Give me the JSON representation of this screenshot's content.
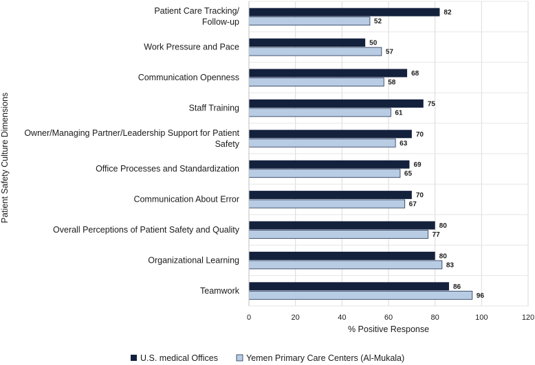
{
  "chart_data": {
    "type": "bar",
    "orientation": "horizontal",
    "title": "",
    "xlabel": "% Positive Response",
    "ylabel": "Patient Safety Culture Dimensions",
    "xlim": [
      0,
      120
    ],
    "xticks": [
      0,
      20,
      40,
      60,
      80,
      100,
      120
    ],
    "grid": true,
    "legend_position": "bottom",
    "categories": [
      "Patient Care Tracking/ Follow-up",
      "Work Pressure and Pace",
      "Communication Openness",
      "Staff Training",
      "Owner/Managing Partner/Leadership Support for Patient Safety",
      "Office Processes and Standardization",
      "Communication About Error",
      "Overall Perceptions of Patient Safety and Quality",
      "Organizational Learning",
      "Teamwork"
    ],
    "category_lines": [
      [
        "Patient Care Tracking/",
        "Follow-up"
      ],
      [
        "Work Pressure and Pace"
      ],
      [
        "Communication Openness"
      ],
      [
        "Staff Training"
      ],
      [
        "Owner/Managing Partner/Leadership Support for Patient",
        "Safety"
      ],
      [
        "Office Processes and Standardization"
      ],
      [
        "Communication About Error"
      ],
      [
        "Overall Perceptions of Patient Safety and Quality"
      ],
      [
        "Organizational Learning"
      ],
      [
        "Teamwork"
      ]
    ],
    "series": [
      {
        "name": "U.S. medical Offices",
        "color": "#14213d",
        "values": [
          82,
          50,
          68,
          75,
          70,
          69,
          70,
          80,
          80,
          86
        ]
      },
      {
        "name": "Yemen Primary Care Centers (Al-Mukala)",
        "color": "#b8cce4",
        "values": [
          52,
          57,
          58,
          61,
          63,
          65,
          67,
          77,
          83,
          96
        ]
      }
    ]
  }
}
